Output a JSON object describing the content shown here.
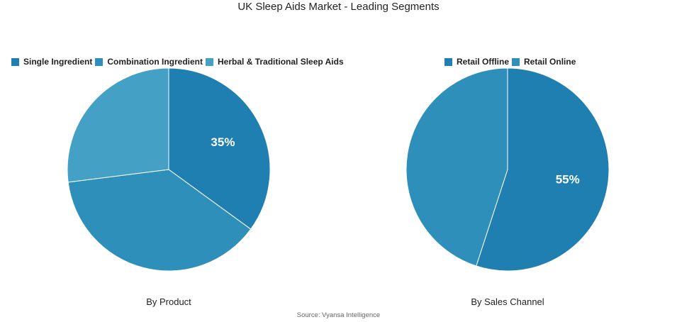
{
  "chart_data": [
    {
      "type": "pie",
      "title": "By Product",
      "slices": [
        {
          "label": "Single Ingredient",
          "value": 35,
          "color": "#1f7fb0",
          "data_label": "35%"
        },
        {
          "label": "Combination Ingredient",
          "value": 38,
          "color": "#2e8fbb",
          "data_label": ""
        },
        {
          "label": "Herbal & Traditional Sleep Aids",
          "value": 27,
          "color": "#45a0c6",
          "data_label": ""
        }
      ],
      "legend": "top"
    },
    {
      "type": "pie",
      "title": "By Sales Channel",
      "slices": [
        {
          "label": "Retail Offline",
          "value": 55,
          "color": "#1f7fb0",
          "data_label": "55%"
        },
        {
          "label": "Retail Online",
          "value": 45,
          "color": "#2e8fbb",
          "data_label": ""
        }
      ],
      "legend": "top"
    }
  ],
  "title": "UK Sleep Aids Market - Leading Segments",
  "source": "Source: Vyansa Intelligence"
}
